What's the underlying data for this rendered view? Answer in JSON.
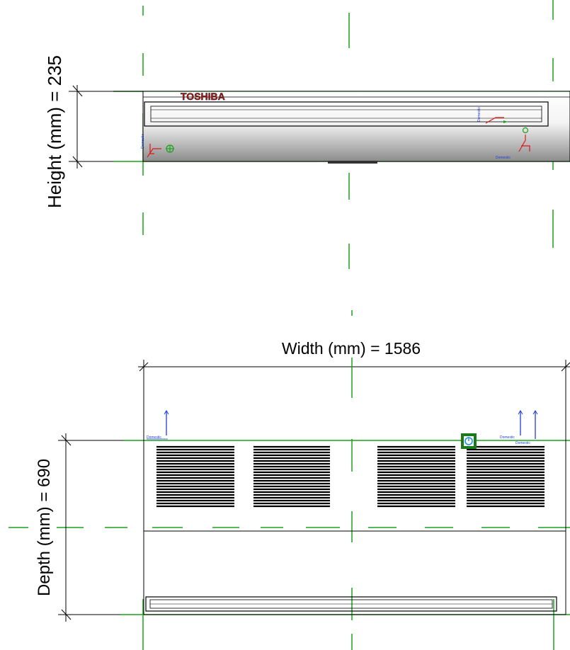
{
  "front_view": {
    "brand_logo": "TOSHIBA",
    "height_label": "Height (mm) = 235",
    "connector_tag": "Domestic"
  },
  "plan_view": {
    "width_label": "Width (mm) = 1586",
    "depth_label": "Depth (mm) = 690",
    "connector_tag": "Domestic"
  },
  "colors": {
    "reference_line": "#1aa31a",
    "outline": "#000000",
    "connector_red": "#e01818",
    "connector_blue": "#1f3fd8",
    "logo_red": "#b01a1a"
  }
}
